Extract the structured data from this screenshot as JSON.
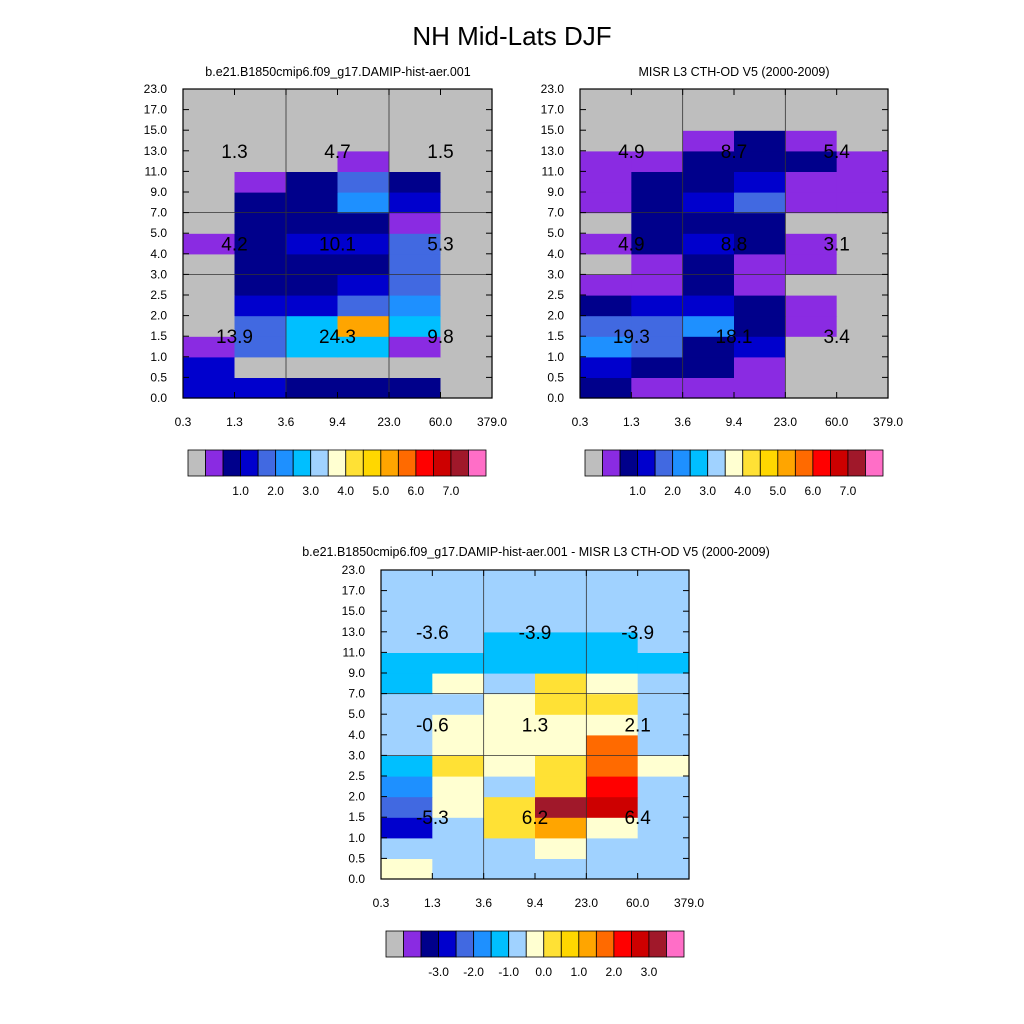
{
  "figure": {
    "title": "NH Mid-Lats DJF"
  },
  "colors": {
    "frame": "#000000",
    "grid": "#333333",
    "ctl_palette": [
      "#bebebe",
      "#8a2be2",
      "#00008b",
      "#0000cd",
      "#4169e1",
      "#1e90ff",
      "#00bfff",
      "#a0d2ff",
      "#ffffd1",
      "#ffe135",
      "#ffd700",
      "#ffa500",
      "#ff6a00",
      "#ff0000",
      "#cd0000",
      "#a0182a",
      "#ff6ec7"
    ],
    "diff_palette": [
      "#bebebe",
      "#8a2be2",
      "#00008b",
      "#0000cd",
      "#4169e1",
      "#1e90ff",
      "#00bfff",
      "#a0d2ff",
      "#ffffd1",
      "#ffe135",
      "#ffd700",
      "#ffa500",
      "#ff6a00",
      "#ff0000",
      "#cd0000",
      "#a0182a",
      "#ff6ec7"
    ]
  },
  "chart_data": [
    {
      "type": "heatmap",
      "panel": "model",
      "title": "b.e21.B1850cmip6.f09_g17.DAMIP-hist-aer.001",
      "x_tick_labels": [
        "0.3",
        "1.3",
        "3.6",
        "9.4",
        "23.0",
        "60.0",
        "379.0"
      ],
      "y_tick_labels": [
        "0.0",
        "0.5",
        "1.0",
        "1.5",
        "2.0",
        "2.5",
        "3.0",
        "4.0",
        "5.0",
        "7.0",
        "9.0",
        "11.0",
        "13.0",
        "15.0",
        "17.0",
        "23.0"
      ],
      "x_group_boundaries": [
        2,
        4
      ],
      "y_group_boundaries": [
        6,
        9
      ],
      "colorbar": {
        "labels": [
          "1.0",
          "2.0",
          "3.0",
          "4.0",
          "5.0",
          "6.0",
          "7.0"
        ]
      },
      "grid_color_index": [
        [
          3,
          3,
          2,
          2,
          2,
          0
        ],
        [
          3,
          0,
          0,
          0,
          0,
          0
        ],
        [
          1,
          4,
          6,
          6,
          1,
          0
        ],
        [
          0,
          4,
          6,
          11,
          6,
          0
        ],
        [
          0,
          3,
          3,
          4,
          5,
          0
        ],
        [
          0,
          2,
          2,
          3,
          4,
          0
        ],
        [
          0,
          2,
          2,
          2,
          4,
          0
        ],
        [
          1,
          2,
          3,
          3,
          4,
          0
        ],
        [
          0,
          2,
          2,
          2,
          1,
          0
        ],
        [
          0,
          2,
          2,
          5,
          3,
          0
        ],
        [
          0,
          1,
          2,
          4,
          2,
          0
        ],
        [
          0,
          0,
          0,
          1,
          0,
          0
        ],
        [
          0,
          0,
          0,
          0,
          0,
          0
        ],
        [
          0,
          0,
          0,
          0,
          0,
          0
        ],
        [
          0,
          0,
          0,
          0,
          0,
          0
        ]
      ],
      "annotations": [
        {
          "text": "13.9",
          "col": 0.5,
          "row": 1
        },
        {
          "text": "24.3",
          "col": 1.5,
          "row": 1
        },
        {
          "text": "9.8",
          "col": 2.5,
          "row": 1
        },
        {
          "text": "4.2",
          "col": 0.5,
          "row": 2
        },
        {
          "text": "10.1",
          "col": 1.5,
          "row": 2
        },
        {
          "text": "5.3",
          "col": 2.5,
          "row": 2
        },
        {
          "text": "1.3",
          "col": 0.5,
          "row": 3
        },
        {
          "text": "4.7",
          "col": 1.5,
          "row": 3
        },
        {
          "text": "1.5",
          "col": 2.5,
          "row": 3
        }
      ]
    },
    {
      "type": "heatmap",
      "panel": "obs",
      "title": "MISR L3 CTH-OD V5 (2000-2009)",
      "x_tick_labels": [
        "0.3",
        "1.3",
        "3.6",
        "9.4",
        "23.0",
        "60.0",
        "379.0"
      ],
      "y_tick_labels": [
        "0.0",
        "0.5",
        "1.0",
        "1.5",
        "2.0",
        "2.5",
        "3.0",
        "4.0",
        "5.0",
        "7.0",
        "9.0",
        "11.0",
        "13.0",
        "15.0",
        "17.0",
        "23.0"
      ],
      "x_group_boundaries": [
        2,
        4
      ],
      "y_group_boundaries": [
        6,
        9
      ],
      "colorbar": {
        "labels": [
          "1.0",
          "2.0",
          "3.0",
          "4.0",
          "5.0",
          "6.0",
          "7.0"
        ]
      },
      "grid_color_index": [
        [
          2,
          1,
          1,
          1,
          0,
          0
        ],
        [
          3,
          2,
          2,
          1,
          0,
          0
        ],
        [
          5,
          4,
          2,
          3,
          0,
          0
        ],
        [
          4,
          4,
          5,
          2,
          1,
          0
        ],
        [
          2,
          3,
          3,
          2,
          1,
          0
        ],
        [
          1,
          1,
          2,
          1,
          0,
          0
        ],
        [
          0,
          1,
          2,
          1,
          1,
          0
        ],
        [
          1,
          2,
          3,
          2,
          1,
          0
        ],
        [
          0,
          2,
          2,
          2,
          0,
          0
        ],
        [
          1,
          2,
          3,
          4,
          1,
          1
        ],
        [
          1,
          2,
          2,
          3,
          1,
          1
        ],
        [
          1,
          1,
          2,
          2,
          2,
          1
        ],
        [
          0,
          0,
          1,
          2,
          1,
          0
        ],
        [
          0,
          0,
          0,
          0,
          0,
          0
        ],
        [
          0,
          0,
          0,
          0,
          0,
          0
        ]
      ],
      "annotations": [
        {
          "text": "19.3",
          "col": 0.5,
          "row": 1
        },
        {
          "text": "18.1",
          "col": 1.5,
          "row": 1
        },
        {
          "text": "3.4",
          "col": 2.5,
          "row": 1
        },
        {
          "text": "4.9",
          "col": 0.5,
          "row": 2
        },
        {
          "text": "8.8",
          "col": 1.5,
          "row": 2
        },
        {
          "text": "3.1",
          "col": 2.5,
          "row": 2
        },
        {
          "text": "4.9",
          "col": 0.5,
          "row": 3
        },
        {
          "text": "8.7",
          "col": 1.5,
          "row": 3
        },
        {
          "text": "5.4",
          "col": 2.5,
          "row": 3
        }
      ]
    },
    {
      "type": "heatmap",
      "panel": "diff",
      "title": "b.e21.B1850cmip6.f09_g17.DAMIP-hist-aer.001 - MISR L3 CTH-OD V5 (2000-2009)",
      "x_tick_labels": [
        "0.3",
        "1.3",
        "3.6",
        "9.4",
        "23.0",
        "60.0",
        "379.0"
      ],
      "y_tick_labels": [
        "0.0",
        "0.5",
        "1.0",
        "1.5",
        "2.0",
        "2.5",
        "3.0",
        "4.0",
        "5.0",
        "7.0",
        "9.0",
        "11.0",
        "13.0",
        "15.0",
        "17.0",
        "23.0"
      ],
      "x_group_boundaries": [
        2,
        4
      ],
      "y_group_boundaries": [
        6,
        9
      ],
      "colorbar": {
        "labels": [
          "-3.0",
          "-2.0",
          "-1.0",
          "0.0",
          "1.0",
          "2.0",
          "3.0"
        ]
      },
      "grid_color_index": [
        [
          8,
          7,
          7,
          7,
          7,
          7
        ],
        [
          7,
          7,
          7,
          8,
          7,
          7
        ],
        [
          3,
          7,
          9,
          11,
          8,
          7
        ],
        [
          4,
          8,
          9,
          15,
          14,
          7
        ],
        [
          5,
          8,
          7,
          9,
          13,
          7
        ],
        [
          6,
          9,
          8,
          9,
          12,
          8
        ],
        [
          7,
          8,
          8,
          8,
          12,
          7
        ],
        [
          7,
          8,
          8,
          8,
          8,
          7
        ],
        [
          7,
          7,
          8,
          9,
          9,
          7
        ],
        [
          6,
          8,
          7,
          9,
          8,
          7
        ],
        [
          6,
          6,
          6,
          6,
          6,
          6
        ],
        [
          7,
          7,
          6,
          6,
          6,
          7
        ],
        [
          7,
          7,
          7,
          7,
          7,
          7
        ],
        [
          7,
          7,
          7,
          7,
          7,
          7
        ],
        [
          7,
          7,
          7,
          7,
          7,
          7
        ]
      ],
      "annotations": [
        {
          "text": "-5.3",
          "col": 0.5,
          "row": 1
        },
        {
          "text": "6.2",
          "col": 1.5,
          "row": 1
        },
        {
          "text": "6.4",
          "col": 2.5,
          "row": 1
        },
        {
          "text": "-0.6",
          "col": 0.5,
          "row": 2
        },
        {
          "text": "1.3",
          "col": 1.5,
          "row": 2
        },
        {
          "text": "2.1",
          "col": 2.5,
          "row": 2
        },
        {
          "text": "-3.6",
          "col": 0.5,
          "row": 3
        },
        {
          "text": "-3.9",
          "col": 1.5,
          "row": 3
        },
        {
          "text": "-3.9",
          "col": 2.5,
          "row": 3
        }
      ]
    }
  ]
}
